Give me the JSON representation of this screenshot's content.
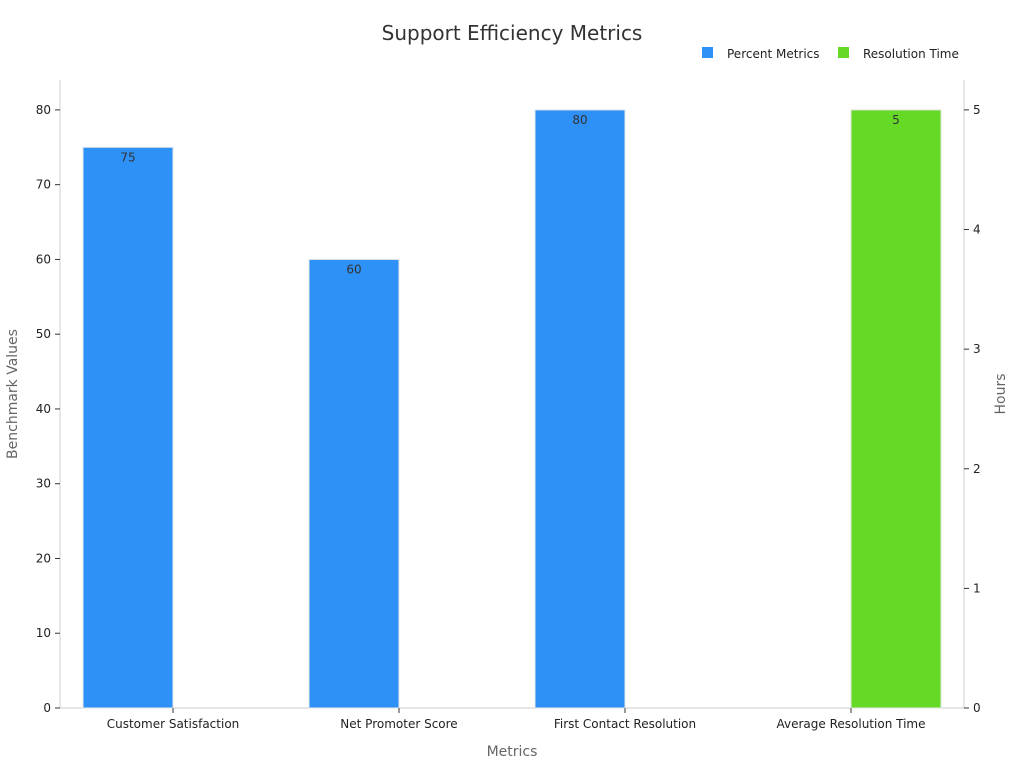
{
  "chart_data": {
    "type": "bar",
    "title": "Support Efficiency Metrics",
    "xlabel": "Metrics",
    "ylabel": "Benchmark Values",
    "y2label": "Hours",
    "categories": [
      "Customer Satisfaction",
      "Net Promoter Score",
      "First Contact Resolution",
      "Average Resolution Time"
    ],
    "ylim": [
      0,
      84
    ],
    "yticks": [
      0,
      10,
      20,
      30,
      40,
      50,
      60,
      70,
      80
    ],
    "y2lim": [
      0,
      5.25
    ],
    "y2ticks": [
      0,
      1,
      2,
      3,
      4,
      5
    ],
    "legend_position": "top-right",
    "grid": false,
    "series": [
      {
        "name": "Percent Metrics",
        "axis": "left",
        "color": "#2e91f7",
        "values": [
          75,
          60,
          80,
          null
        ],
        "labels": [
          "75",
          "60",
          "80",
          null
        ]
      },
      {
        "name": "Resolution Time",
        "axis": "right",
        "color": "#66d926",
        "values": [
          null,
          null,
          null,
          5
        ],
        "labels": [
          null,
          null,
          null,
          "5"
        ]
      }
    ]
  }
}
